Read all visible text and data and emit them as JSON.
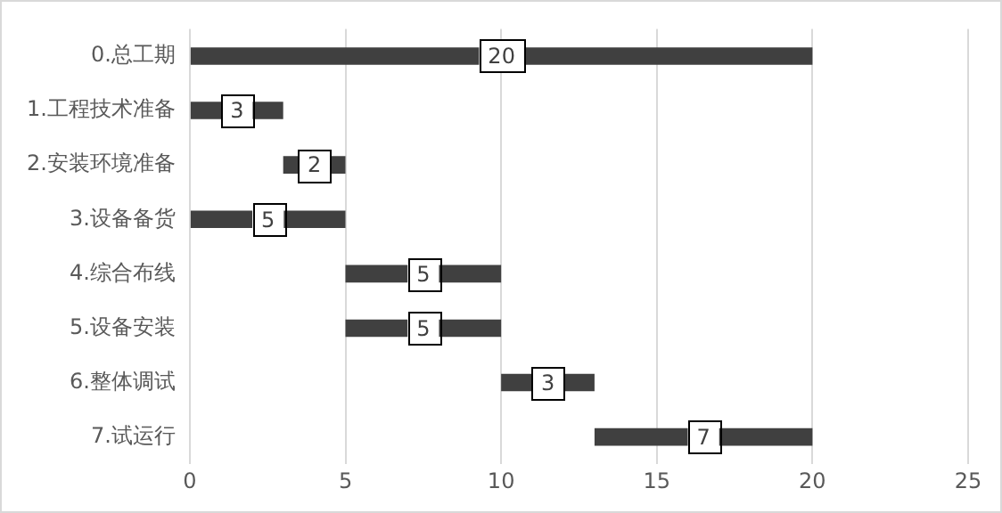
{
  "chart_data": {
    "type": "bar",
    "orientation": "horizontal",
    "categories": [
      "0.总工期",
      "1.工程技术准备",
      "2.安装环境准备",
      "3.设备备货",
      "4.综合布线",
      "5.设备安装",
      "6.整体调试",
      "7.试运行"
    ],
    "base": [
      0,
      0,
      3,
      0,
      5,
      5,
      10,
      13
    ],
    "values": [
      20,
      3,
      2,
      5,
      5,
      5,
      3,
      7
    ],
    "color": "#404040",
    "xlim": [
      0,
      25
    ],
    "xticks": [
      0,
      5,
      10,
      15,
      20,
      25
    ],
    "grid": "x",
    "data_labels": true,
    "legend": false
  }
}
